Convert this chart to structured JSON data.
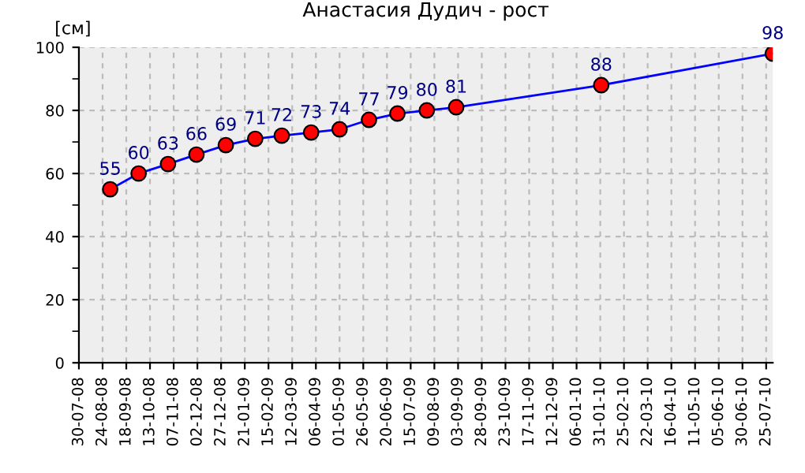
{
  "chart_data": {
    "type": "line",
    "title": "Анастасия Дудич - рост",
    "ylabel": "[см]",
    "x": [
      "2008-09-01",
      "2008-10-01",
      "2008-11-01",
      "2008-12-01",
      "2009-01-01",
      "2009-02-01",
      "2009-03-01",
      "2009-04-01",
      "2009-05-01",
      "2009-06-01",
      "2009-07-01",
      "2009-08-01",
      "2009-09-01",
      "2010-02-01",
      "2010-08-01"
    ],
    "series": [
      {
        "color": "#0000ff",
        "values": [
          55,
          60,
          63,
          66,
          69,
          71,
          72,
          73,
          74,
          77,
          79,
          80,
          81,
          88,
          98
        ]
      }
    ],
    "data_labels": true,
    "marker": "circle",
    "line_style": "solid",
    "grid": true,
    "ylim": [
      0,
      100
    ],
    "yticks": [
      0,
      20,
      40,
      60,
      80,
      100
    ],
    "xlim": [
      "2008-07-30",
      "2010-08-01"
    ],
    "xticks": [
      {
        "value": "2008-07-30",
        "label": "30-07-08"
      },
      {
        "value": "2008-08-24",
        "label": "24-08-08"
      },
      {
        "value": "2008-09-18",
        "label": "18-09-08"
      },
      {
        "value": "2008-10-13",
        "label": "13-10-08"
      },
      {
        "value": "2008-11-07",
        "label": "07-11-08"
      },
      {
        "value": "2008-12-02",
        "label": "02-12-08"
      },
      {
        "value": "2008-12-27",
        "label": "27-12-08"
      },
      {
        "value": "2009-01-21",
        "label": "21-01-09"
      },
      {
        "value": "2009-02-15",
        "label": "15-02-09"
      },
      {
        "value": "2009-03-12",
        "label": "12-03-09"
      },
      {
        "value": "2009-04-06",
        "label": "06-04-09"
      },
      {
        "value": "2009-05-01",
        "label": "01-05-09"
      },
      {
        "value": "2009-05-26",
        "label": "26-05-09"
      },
      {
        "value": "2009-06-20",
        "label": "20-06-09"
      },
      {
        "value": "2009-07-15",
        "label": "15-07-09"
      },
      {
        "value": "2009-08-09",
        "label": "09-08-09"
      },
      {
        "value": "2009-09-03",
        "label": "03-09-09"
      },
      {
        "value": "2009-09-28",
        "label": "28-09-09"
      },
      {
        "value": "2009-10-23",
        "label": "23-10-09"
      },
      {
        "value": "2009-11-17",
        "label": "17-11-09"
      },
      {
        "value": "2009-12-12",
        "label": "12-12-09"
      },
      {
        "value": "2010-01-06",
        "label": "06-01-10"
      },
      {
        "value": "2010-01-31",
        "label": "31-01-10"
      },
      {
        "value": "2010-02-25",
        "label": "25-02-10"
      },
      {
        "value": "2010-03-22",
        "label": "22-03-10"
      },
      {
        "value": "2010-04-16",
        "label": "16-04-10"
      },
      {
        "value": "2010-05-11",
        "label": "11-05-10"
      },
      {
        "value": "2010-06-05",
        "label": "05-06-10"
      },
      {
        "value": "2010-06-30",
        "label": "30-06-10"
      },
      {
        "value": "2010-07-25",
        "label": "25-07-10"
      }
    ]
  }
}
